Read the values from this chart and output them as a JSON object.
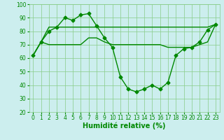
{
  "xlabel": "Humidité relative (%)",
  "background_color": "#cceeee",
  "grid_color": "#88cc88",
  "line_color": "#008800",
  "marker_color": "#008800",
  "xlim": [
    -0.5,
    23.5
  ],
  "ylim": [
    20,
    100
  ],
  "yticks": [
    20,
    30,
    40,
    50,
    60,
    70,
    80,
    90,
    100
  ],
  "xticks": [
    0,
    1,
    2,
    3,
    4,
    5,
    6,
    7,
    8,
    9,
    10,
    11,
    12,
    13,
    14,
    15,
    16,
    17,
    18,
    19,
    20,
    21,
    22,
    23
  ],
  "series1_x": [
    0,
    1,
    2,
    3,
    4,
    5,
    6,
    7,
    8,
    9,
    10,
    11,
    12,
    13,
    14,
    15,
    16,
    17,
    18,
    19,
    20,
    21,
    22,
    23
  ],
  "series1_y": [
    62,
    72,
    80,
    83,
    90,
    88,
    92,
    93,
    84,
    75,
    68,
    46,
    37,
    35,
    37,
    40,
    37,
    42,
    62,
    67,
    68,
    72,
    81,
    85
  ],
  "series2_x": [
    0,
    1,
    2,
    3,
    4,
    5,
    6,
    7,
    8,
    9,
    10,
    11,
    12,
    13,
    14,
    15,
    16,
    17,
    18,
    19,
    20,
    21,
    22,
    23
  ],
  "series2_y": [
    62,
    72,
    83,
    83,
    83,
    83,
    83,
    83,
    83,
    83,
    83,
    83,
    83,
    83,
    83,
    83,
    83,
    83,
    83,
    83,
    83,
    83,
    83,
    85
  ],
  "series3_x": [
    0,
    1,
    2,
    3,
    4,
    5,
    6,
    7,
    8,
    9,
    10,
    11,
    12,
    13,
    14,
    15,
    16,
    17,
    18,
    19,
    20,
    21,
    22,
    23
  ],
  "series3_y": [
    62,
    72,
    70,
    70,
    70,
    70,
    70,
    75,
    75,
    72,
    70,
    70,
    70,
    70,
    70,
    70,
    70,
    68,
    68,
    68,
    68,
    70,
    72,
    85
  ],
  "xlabel_fontsize": 7,
  "tick_fontsize": 5.5,
  "linewidth": 1.0,
  "markersize": 2.5
}
